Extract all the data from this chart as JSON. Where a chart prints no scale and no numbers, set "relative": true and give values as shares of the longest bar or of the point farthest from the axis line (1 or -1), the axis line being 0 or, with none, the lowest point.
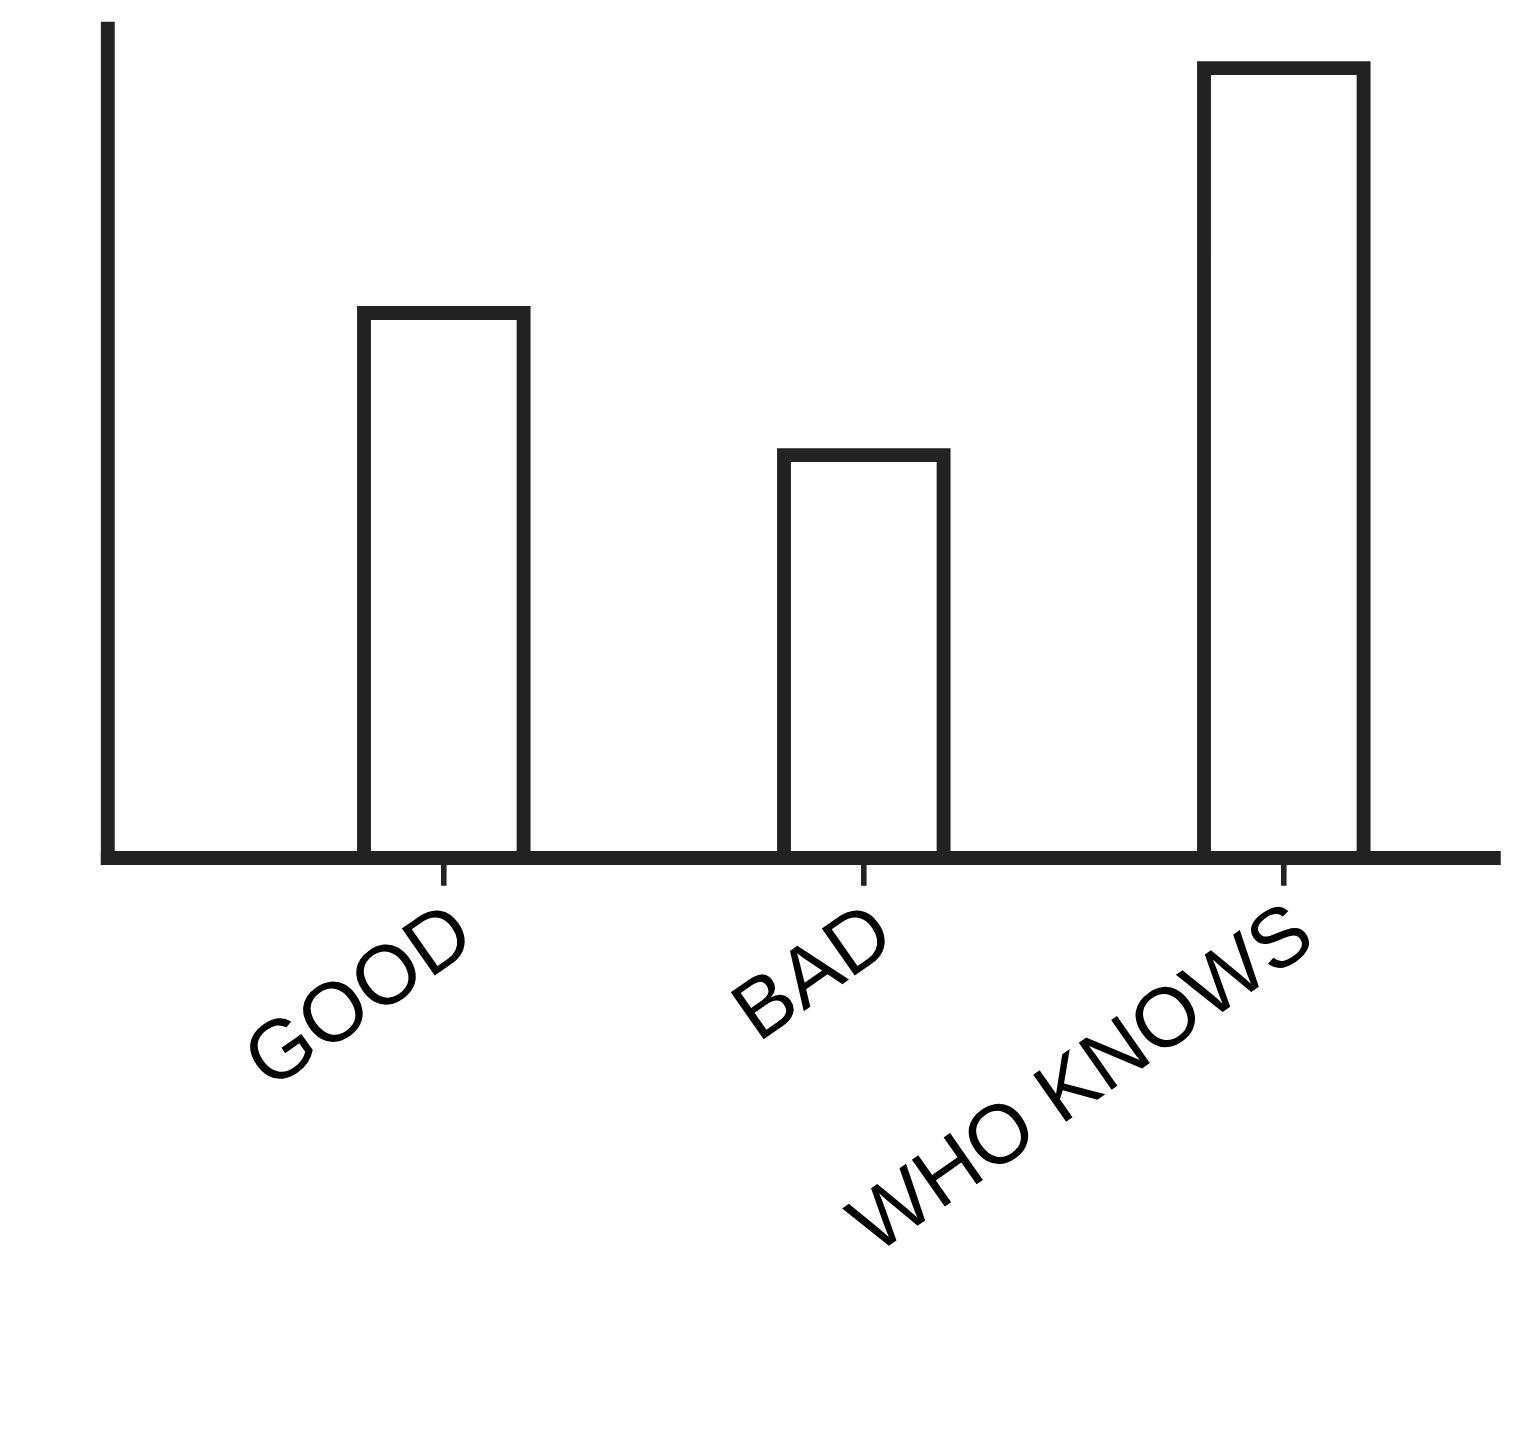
{
  "chart_data": {
    "type": "bar",
    "relative": true,
    "categories": [
      "GOOD",
      "BAD",
      "WHO KNOWS"
    ],
    "values": [
      0.69,
      0.51,
      1.0
    ],
    "color": "#222222",
    "grid": false,
    "legend": false
  }
}
